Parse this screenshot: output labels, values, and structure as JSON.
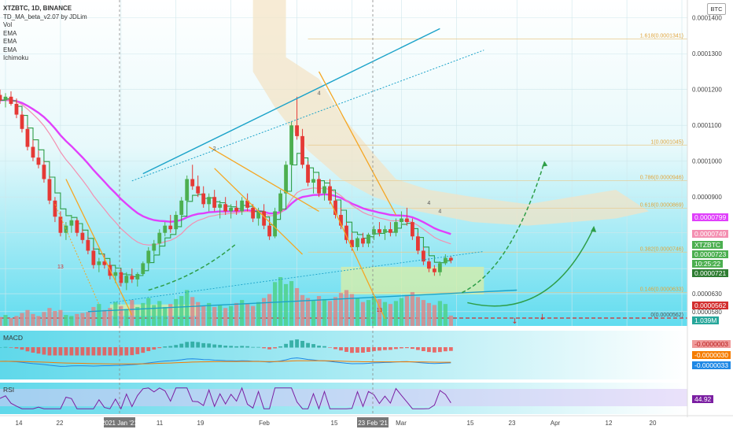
{
  "header": {
    "title": "XTZBTC, 1D, BINANCE",
    "indicators": [
      "TD_MA_beta_v2.07 by JDLim",
      "Vol",
      "EMA",
      "EMA",
      "EMA",
      "Ichimoku"
    ]
  },
  "badge": "BTC",
  "price_axis_labels": [
    "0.0001400",
    "0.0001300",
    "0.0001200",
    "0.0001100",
    "0.0001000",
    "0.0000900",
    "0.0000630",
    "0.0000580"
  ],
  "fib_levels": [
    {
      "label": "1.618(0.0001341)",
      "value": 0.0001341
    },
    {
      "label": "1(0.0001045)",
      "value": 0.0001045
    },
    {
      "label": "0.786(0.0000946)",
      "value": 9.46e-05
    },
    {
      "label": "0.618(0.0000869)",
      "value": 8.69e-05
    },
    {
      "label": "0.382(0.0000746)",
      "value": 7.46e-05
    },
    {
      "label": "0.146(0.0000633)",
      "value": 6.33e-05
    },
    {
      "label": "0(0.0000562)",
      "value": 5.62e-05
    }
  ],
  "price_tags": [
    {
      "text": "0.0000799",
      "bg": "#e040fb",
      "fg": "#ffffff"
    },
    {
      "text": "0.0000749",
      "bg": "#f48fb1",
      "fg": "#ffffff"
    },
    {
      "text": "XTZBTC",
      "bg": "#4caf50",
      "fg": "#ffffff"
    },
    {
      "text": "0.0000723",
      "bg": "#4caf50",
      "fg": "#ffffff"
    },
    {
      "text": "10:25:22",
      "bg": "#4caf50",
      "fg": "#ffffff"
    },
    {
      "text": "0.0000721",
      "bg": "#2e7d32",
      "fg": "#ffffff"
    },
    {
      "text": "0.0000562",
      "bg": "#d32f2f",
      "fg": "#ffffff"
    },
    {
      "text": "1.039M",
      "bg": "#26a69a",
      "fg": "#ffffff"
    }
  ],
  "macd": {
    "label": "MACD",
    "values": [
      {
        "text": "-0.0000003",
        "bg": "#ef9a9a",
        "fg": "#b71c1c"
      },
      {
        "text": "-0.0000030",
        "bg": "#f57c00",
        "fg": "#ffffff"
      },
      {
        "text": "-0.0000033",
        "bg": "#1e88e5",
        "fg": "#ffffff"
      }
    ]
  },
  "rsi": {
    "label": "RSI",
    "value": {
      "text": "44.92",
      "bg": "#7b1fa2",
      "fg": "#ffffff"
    }
  },
  "time_axis": [
    "14",
    "22",
    "2021 Jan '21",
    "11",
    "19",
    "Feb",
    "15",
    "23 Feb '21",
    "Mar",
    "15",
    "23",
    "Apr",
    "12",
    "20"
  ],
  "candle_labels": [
    "13",
    "13",
    "2",
    "4",
    "4",
    "4"
  ],
  "colors": {
    "up": "#4caf50",
    "down": "#e53935",
    "ema_fast": "#2e7d32",
    "ema_mid": "#f06292",
    "ema_slow": "#d81b60",
    "trend_blue": "#1ca3c9",
    "trend_orange": "#f5a623",
    "projection": "#2e9e48"
  },
  "chart_data": {
    "type": "candlestick",
    "symbol": "XTZBTC",
    "interval": "1D",
    "exchange": "BINANCE",
    "ohlc": [
      [
        0.0001185,
        0.00012,
        0.000116,
        0.000117
      ],
      [
        0.000117,
        0.000119,
        0.000115,
        0.000118
      ],
      [
        0.000118,
        0.0001195,
        0.0001155,
        0.000116
      ],
      [
        0.000116,
        0.0001175,
        0.000112,
        0.000113
      ],
      [
        0.000113,
        0.000114,
        0.000108,
        0.000109
      ],
      [
        0.000109,
        0.00011,
        0.000103,
        0.000104
      ],
      [
        0.000104,
        0.000106,
        0.0001,
        0.000101
      ],
      [
        0.000101,
        0.000103,
        9.8e-05,
        9.9e-05
      ],
      [
        9.9e-05,
        0.0001,
        9.4e-05,
        9.5e-05
      ],
      [
        9.5e-05,
        9.6e-05,
        8.8e-05,
        8.9e-05
      ],
      [
        8.9e-05,
        9e-05,
        8.3e-05,
        8.45e-05
      ],
      [
        8.45e-05,
        8.6e-05,
        7.9e-05,
        8e-05
      ],
      [
        8e-05,
        8.3e-05,
        7.8e-05,
        8.2e-05
      ],
      [
        8.2e-05,
        8.5e-05,
        8e-05,
        8.35e-05
      ],
      [
        8.35e-05,
        8.4e-05,
        7.9e-05,
        8e-05
      ],
      [
        8e-05,
        8.1e-05,
        7.7e-05,
        7.8e-05
      ],
      [
        7.8e-05,
        7.9e-05,
        7.4e-05,
        7.5e-05
      ],
      [
        7.5e-05,
        7.6e-05,
        7e-05,
        7.1e-05
      ],
      [
        7.1e-05,
        7.3e-05,
        6.9e-05,
        7.2e-05
      ],
      [
        7.2e-05,
        7.4e-05,
        7e-05,
        7.1e-05
      ],
      [
        7.1e-05,
        7.2e-05,
        6.7e-05,
        6.8e-05
      ],
      [
        6.8e-05,
        7e-05,
        6.6e-05,
        6.9e-05
      ],
      [
        6.9e-05,
        7e-05,
        6.5e-05,
        6.6e-05
      ],
      [
        6.6e-05,
        6.9e-05,
        6.4e-05,
        6.8e-05
      ],
      [
        6.8e-05,
        7e-05,
        6.6e-05,
        6.7e-05
      ],
      [
        6.7e-05,
        6.9e-05,
        6.5e-05,
        6.85e-05
      ],
      [
        6.85e-05,
        7.2e-05,
        6.8e-05,
        7.15e-05
      ],
      [
        7.15e-05,
        7.6e-05,
        7.1e-05,
        7.5e-05
      ],
      [
        7.5e-05,
        7.8e-05,
        7.4e-05,
        7.7e-05
      ],
      [
        7.7e-05,
        8.1e-05,
        7.6e-05,
        8e-05
      ],
      [
        8e-05,
        8.3e-05,
        7.9e-05,
        8.2e-05
      ],
      [
        8.2e-05,
        8.5e-05,
        8e-05,
        8.1e-05
      ],
      [
        8.1e-05,
        8.6e-05,
        8e-05,
        8.5e-05
      ],
      [
        8.5e-05,
        9e-05,
        8.4e-05,
        8.9e-05
      ],
      [
        8.9e-05,
        9.6e-05,
        8.8e-05,
        9.5e-05
      ],
      [
        9.5e-05,
        9.9e-05,
        9.2e-05,
        9.3e-05
      ],
      [
        9.3e-05,
        9.6e-05,
        9e-05,
        9.1e-05
      ],
      [
        9.1e-05,
        9.3e-05,
        8.7e-05,
        8.8e-05
      ],
      [
        8.8e-05,
        9.1e-05,
        8.6e-05,
        9e-05
      ],
      [
        9e-05,
        9.2e-05,
        8.6e-05,
        8.7e-05
      ],
      [
        8.7e-05,
        8.9e-05,
        8.4e-05,
        8.8e-05
      ],
      [
        8.8e-05,
        9e-05,
        8.5e-05,
        8.6e-05
      ],
      [
        8.6e-05,
        8.8e-05,
        8.4e-05,
        8.7e-05
      ],
      [
        8.7e-05,
        8.9e-05,
        8.5e-05,
        8.6e-05
      ],
      [
        8.6e-05,
        9e-05,
        8.5e-05,
        8.9e-05
      ],
      [
        8.9e-05,
        9.1e-05,
        8.6e-05,
        8.7e-05
      ],
      [
        8.7e-05,
        8.8e-05,
        8.3e-05,
        8.4e-05
      ],
      [
        8.4e-05,
        8.7e-05,
        8.2e-05,
        8.6e-05
      ],
      [
        8.6e-05,
        8.8e-05,
        8.1e-05,
        8.2e-05
      ],
      [
        8.2e-05,
        8.4e-05,
        7.8e-05,
        7.9e-05
      ],
      [
        7.9e-05,
        8.7e-05,
        7.85e-05,
        8.6e-05
      ],
      [
        8.6e-05,
        9.2e-05,
        8.5e-05,
        9.1e-05
      ],
      [
        9.1e-05,
        0.0001,
        9e-05,
        9.9e-05
      ],
      [
        9.9e-05,
        0.000111,
        9.8e-05,
        0.00011
      ],
      [
        0.00011,
        0.000118,
        0.000106,
        0.000107
      ],
      [
        0.000107,
        0.000109,
        9.8e-05,
        9.9e-05
      ],
      [
        9.9e-05,
        0.0001,
        9.3e-05,
        9.4e-05
      ],
      [
        9.4e-05,
        9.7e-05,
        9.1e-05,
        9.5e-05
      ],
      [
        9.5e-05,
        9.6e-05,
        9e-05,
        9.1e-05
      ],
      [
        9.1e-05,
        9.4e-05,
        8.9e-05,
        9.3e-05
      ],
      [
        9.3e-05,
        9.5e-05,
        8.8e-05,
        8.9e-05
      ],
      [
        8.9e-05,
        9e-05,
        8.4e-05,
        8.5e-05
      ],
      [
        8.5e-05,
        8.7e-05,
        8.1e-05,
        8.2e-05
      ],
      [
        8.2e-05,
        8.3e-05,
        7.7e-05,
        7.8e-05
      ],
      [
        7.8e-05,
        8e-05,
        7.5e-05,
        7.6e-05
      ],
      [
        7.6e-05,
        7.9e-05,
        7.5e-05,
        7.85e-05
      ],
      [
        7.85e-05,
        8e-05,
        7.6e-05,
        7.7e-05
      ],
      [
        7.7e-05,
        8e-05,
        7.6e-05,
        7.95e-05
      ],
      [
        7.95e-05,
        8.2e-05,
        7.8e-05,
        8.1e-05
      ],
      [
        8.1e-05,
        8.3e-05,
        7.9e-05,
        8e-05
      ],
      [
        8e-05,
        8.2e-05,
        7.8e-05,
        8.1e-05
      ],
      [
        8.1e-05,
        8.3e-05,
        7.9e-05,
        8e-05
      ],
      [
        8e-05,
        8.4e-05,
        7.9e-05,
        8.3e-05
      ],
      [
        8.3e-05,
        8.6e-05,
        8.2e-05,
        8.4e-05
      ],
      [
        8.4e-05,
        8.7e-05,
        8.2e-05,
        8.3e-05
      ],
      [
        8.3e-05,
        8.4e-05,
        7.8e-05,
        7.9e-05
      ],
      [
        7.9e-05,
        8e-05,
        7.4e-05,
        7.5e-05
      ],
      [
        7.5e-05,
        7.6e-05,
        7.1e-05,
        7.2e-05
      ],
      [
        7.2e-05,
        7.3e-05,
        6.9e-05,
        7e-05
      ],
      [
        7e-05,
        7.1e-05,
        6.8e-05,
        6.9e-05
      ],
      [
        6.9e-05,
        7.2e-05,
        6.8e-05,
        7.15e-05
      ],
      [
        7.15e-05,
        7.4e-05,
        7.1e-05,
        7.3e-05
      ],
      [
        7.3e-05,
        7.35e-05,
        7.15e-05,
        7.23e-05
      ]
    ],
    "volume": [
      0.9,
      1.1,
      0.8,
      1.0,
      1.3,
      1.6,
      1.2,
      1.0,
      1.4,
      1.8,
      1.5,
      1.6,
      1.1,
      1.0,
      1.2,
      1.3,
      1.4,
      1.9,
      2.2,
      1.6,
      1.8,
      2.4,
      2.0,
      1.7,
      2.6,
      1.9,
      2.3,
      2.8,
      2.1,
      2.5,
      1.9,
      2.2,
      2.7,
      3.0,
      3.6,
      2.9,
      2.4,
      2.0,
      2.3,
      1.9,
      2.1,
      1.8,
      2.0,
      2.3,
      2.6,
      2.2,
      2.0,
      2.4,
      2.8,
      3.2,
      4.4,
      4.9,
      4.2,
      4.5,
      3.8,
      3.1,
      2.8,
      2.6,
      3.0,
      2.7,
      2.5,
      2.9,
      3.3,
      3.6,
      3.2,
      2.8,
      2.4,
      2.6,
      3.0,
      2.7,
      2.4,
      2.2,
      2.5,
      2.8,
      3.1,
      3.4,
      2.9,
      2.6,
      2.3,
      2.1,
      2.5,
      2.2,
      1.039
    ],
    "xlim": [
      0,
      125
    ],
    "ylim": [
      5.4e-05,
      0.000145
    ],
    "grid": true
  }
}
